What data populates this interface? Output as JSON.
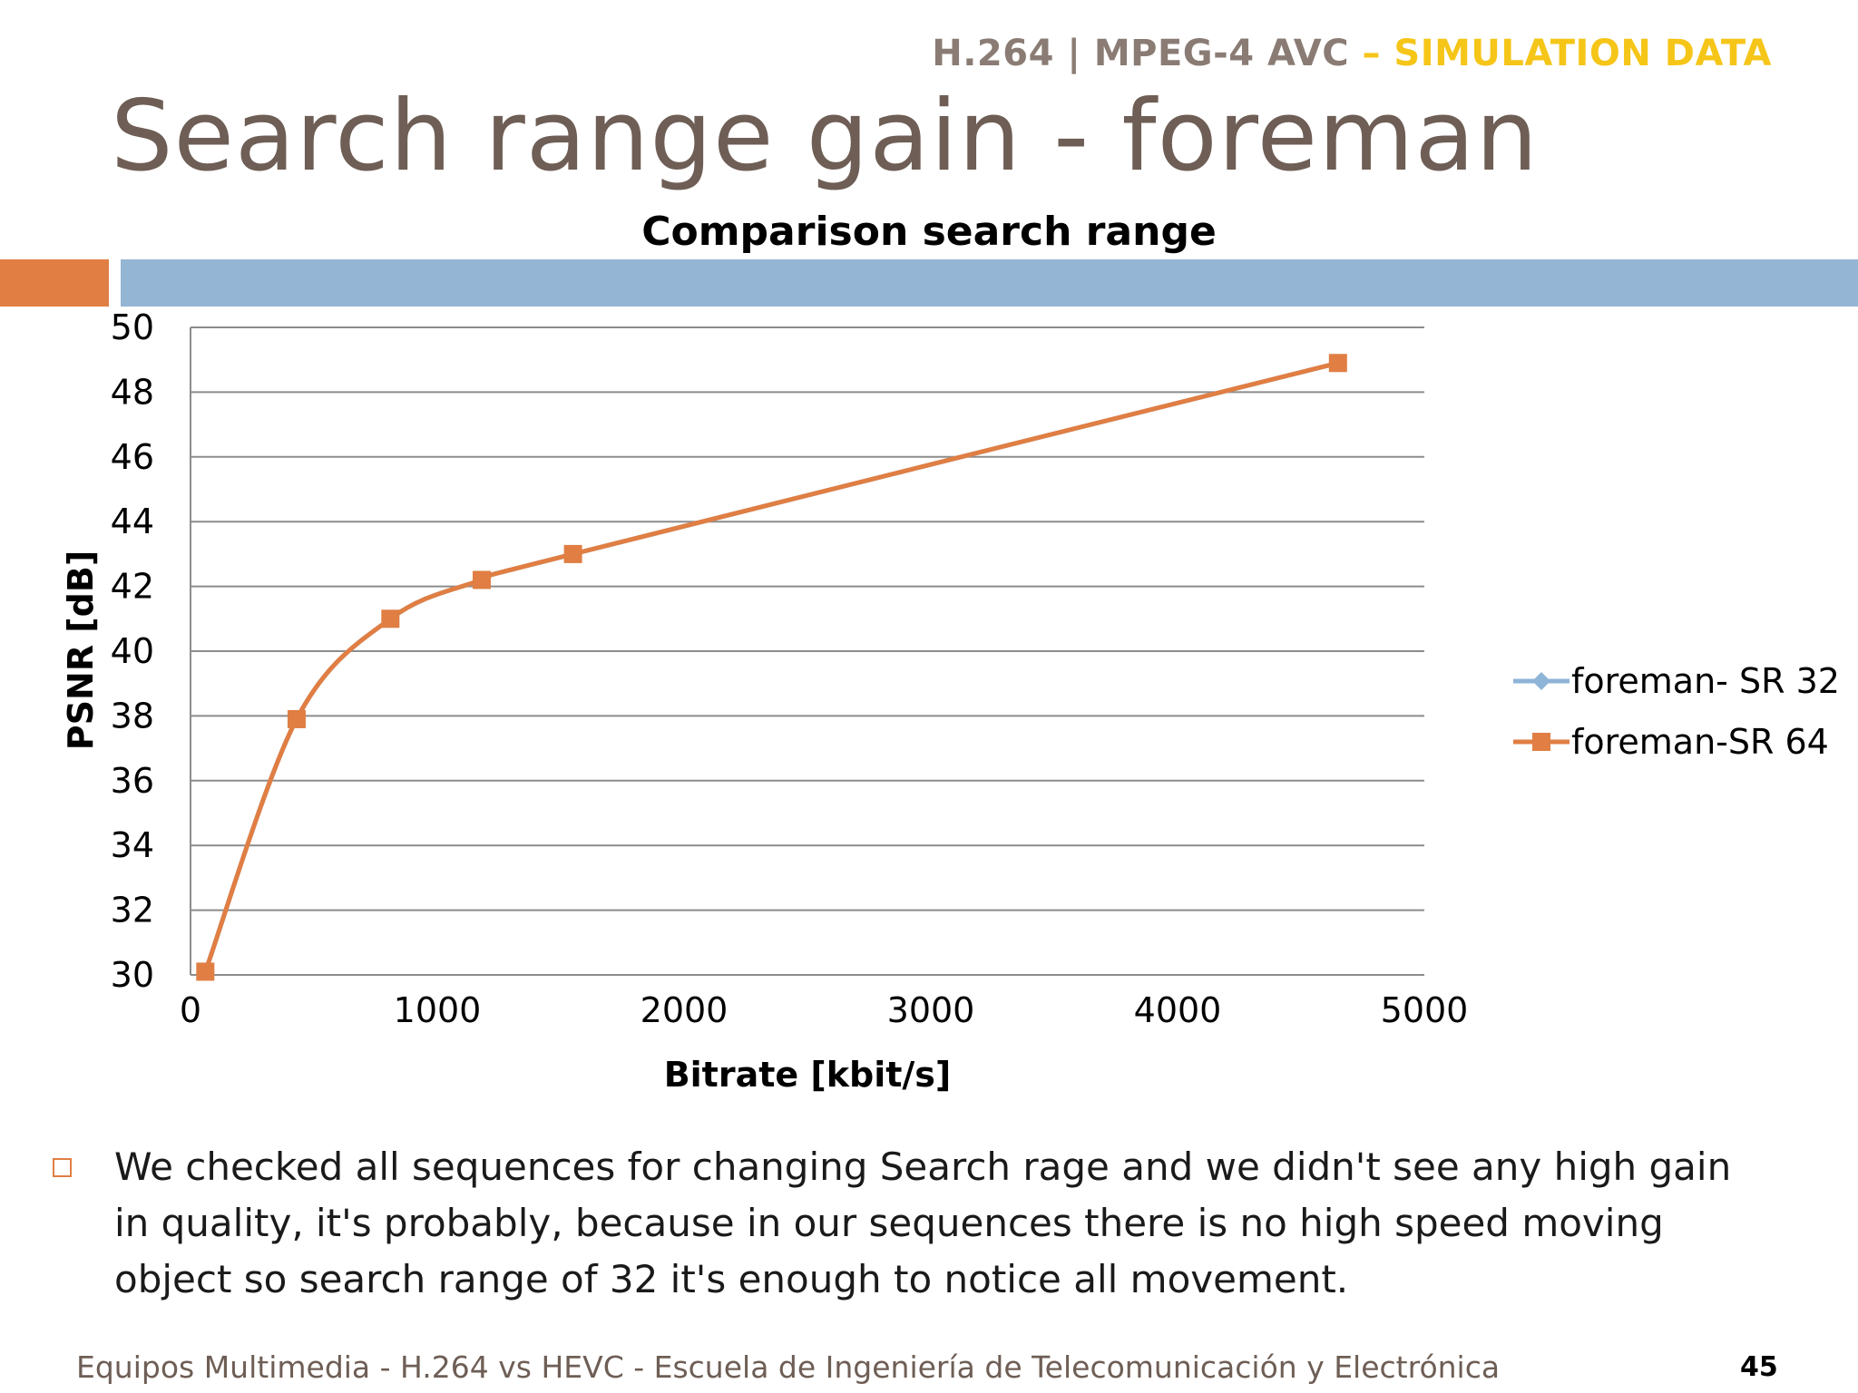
{
  "header": {
    "tag_main": "H.264 | MPEG-4 AVC",
    "tag_highlight": " – SIMULATION DATA"
  },
  "slide": {
    "title": "Search range gain - foreman",
    "bullet_text": "We checked all sequences for changing Search rage and we didn't see any high gain in quality, it's probably, because in our sequences there is no high speed moving object so search range of 32 it's enough to notice all movement.",
    "footer": "Equipos Multimedia - H.264 vs HEVC - Escuela de Ingeniería de Telecomunicación y Electrónica",
    "page_number": "45"
  },
  "colors": {
    "title": "#6e5e55",
    "accent_orange": "#e07e43",
    "accent_blue": "#94b5d4",
    "highlight_yellow": "#f5c518"
  },
  "chart_data": {
    "type": "line",
    "title": "Comparison search range",
    "xlabel": "Bitrate [kbit/s]",
    "ylabel": "PSNR [dB]",
    "xlim": [
      0,
      5000
    ],
    "ylim": [
      30,
      50
    ],
    "xticks": [
      0,
      1000,
      2000,
      3000,
      4000,
      5000
    ],
    "yticks": [
      30,
      32,
      34,
      36,
      38,
      40,
      42,
      44,
      46,
      48,
      50
    ],
    "grid": "horizontal",
    "legend_position": "right",
    "smooth": true,
    "series": [
      {
        "name": "foreman- SR 32",
        "color": "#8eb4d8",
        "marker": "diamond",
        "x": [
          60,
          430,
          810,
          1180,
          1550,
          4650
        ],
        "y": [
          30.1,
          37.9,
          41.0,
          42.2,
          43.0,
          48.9
        ]
      },
      {
        "name": "foreman-SR 64",
        "color": "#e07e43",
        "marker": "square",
        "x": [
          60,
          430,
          810,
          1180,
          1550,
          4650
        ],
        "y": [
          30.1,
          37.9,
          41.0,
          42.2,
          43.0,
          48.9
        ]
      }
    ]
  }
}
